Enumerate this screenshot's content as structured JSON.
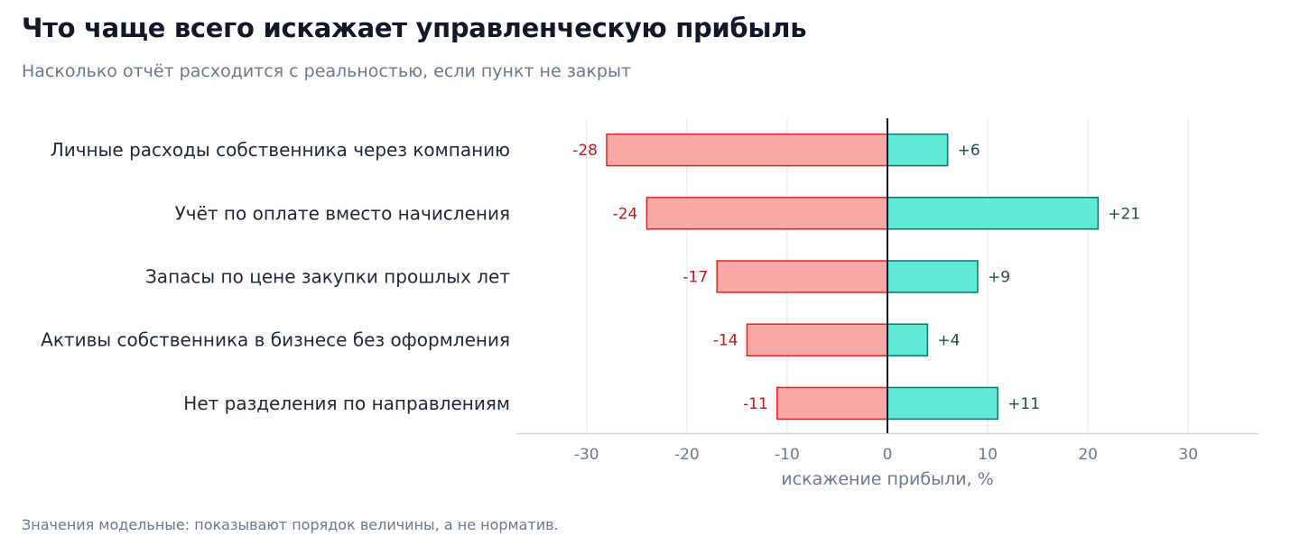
{
  "title": "Что чаще всего искажает управленческую прибыль",
  "subtitle": "Насколько отчёт расходится с реальностью, если пункт не закрыт",
  "footnote": "Значения модельные: показывают порядок величины, а не норматив.",
  "colors": {
    "negative_fill": "#f9a8a8",
    "negative_stroke": "#dc2626",
    "positive_fill": "#5eead4",
    "positive_stroke": "#0f766e",
    "grid": "#e5e7eb",
    "zero_line": "#111827"
  },
  "chart_data": {
    "type": "bar",
    "orientation": "horizontal",
    "categories": [
      "Личные расходы собственника через компанию",
      "Учёт по оплате вместо начисления",
      "Запасы по цене закупки прошлых лет",
      "Активы собственника в бизнесе без оформления",
      "Нет разделения по направлениям"
    ],
    "series": [
      {
        "values": [
          -28,
          -24,
          -17,
          -14,
          -11
        ],
        "labels": [
          "-28",
          "-24",
          "-17",
          "-14",
          "-11"
        ]
      },
      {
        "values": [
          6,
          21,
          9,
          4,
          11
        ],
        "labels": [
          "+6",
          "+21",
          "+9",
          "+4",
          "+11"
        ]
      }
    ],
    "xlabel": "искажение прибыли, %",
    "xlim": [
      -37,
      37
    ],
    "xticks": [
      -30,
      -20,
      -10,
      0,
      10,
      20,
      30
    ],
    "xtick_labels": [
      "-30",
      "-20",
      "-10",
      "0",
      "10",
      "20",
      "30"
    ],
    "grid": "vertical"
  }
}
